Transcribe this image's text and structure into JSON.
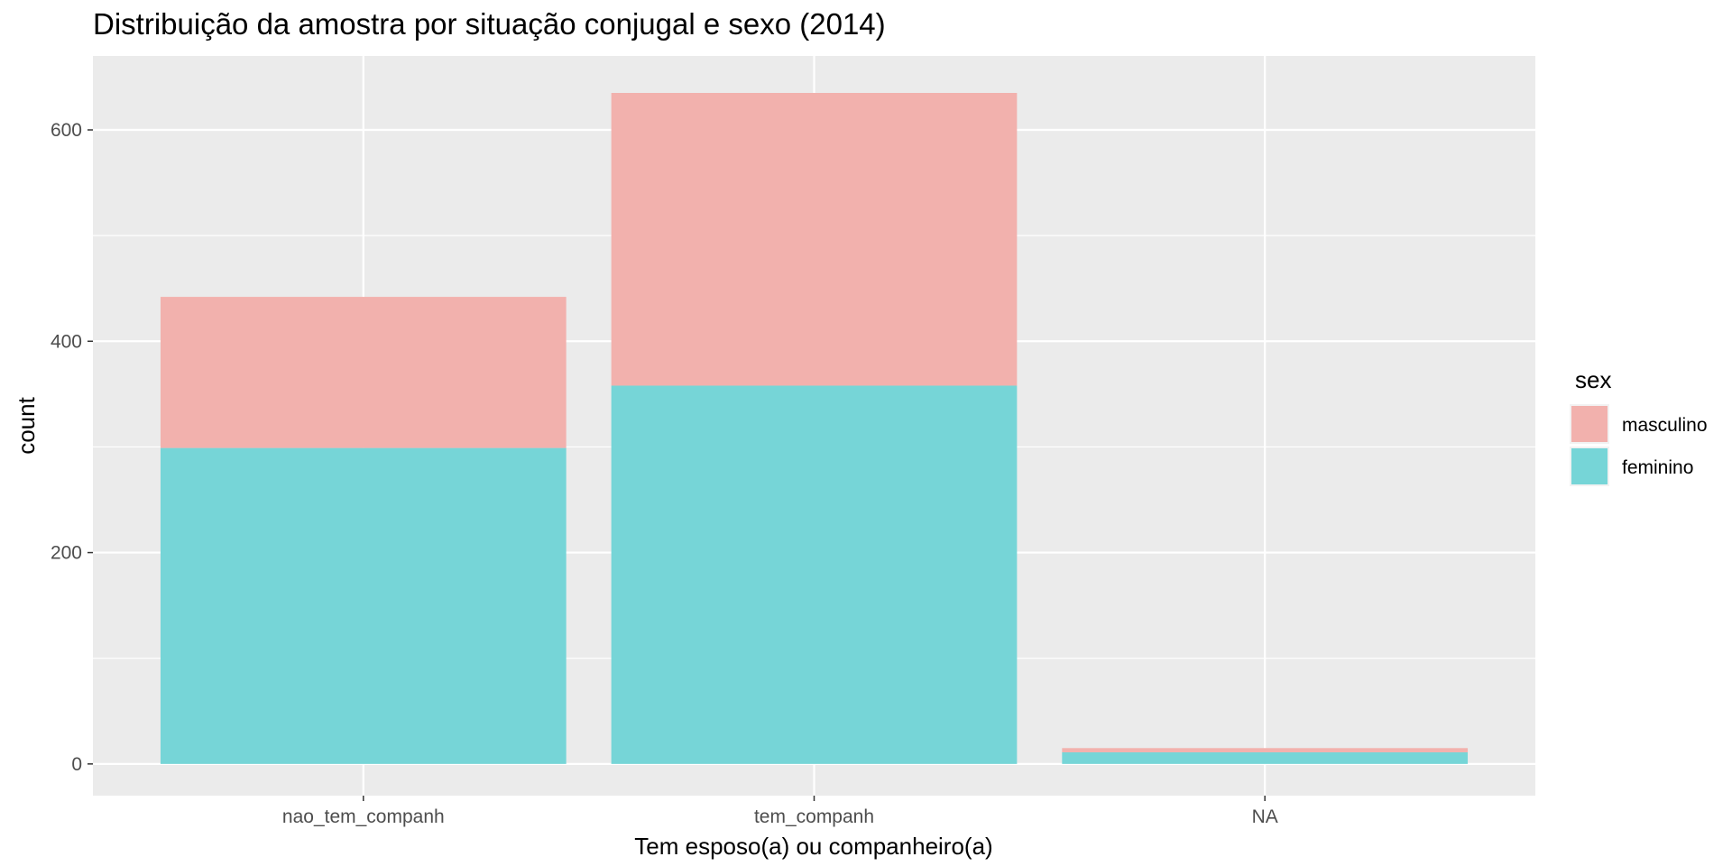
{
  "chart_data": {
    "type": "bar",
    "stacked": true,
    "title": "Distribuição da amostra por situação conjugal e sexo (2014)",
    "xlabel": "Tem esposo(a) ou companheiro(a)",
    "ylabel": "count",
    "categories": [
      "nao_tem_companh",
      "tem_companh",
      "NA"
    ],
    "ylim": [
      -30,
      670
    ],
    "yticks": [
      0,
      200,
      400,
      600
    ],
    "grid": true,
    "legend": {
      "title": "sex",
      "position": "right"
    },
    "series": [
      {
        "name": "feminino",
        "color": "#76d5d7",
        "values": [
          299,
          358,
          11
        ]
      },
      {
        "name": "masculino",
        "color": "#f2b1ad",
        "values": [
          143,
          277,
          4
        ]
      }
    ],
    "legend_order": [
      "masculino",
      "feminino"
    ]
  }
}
